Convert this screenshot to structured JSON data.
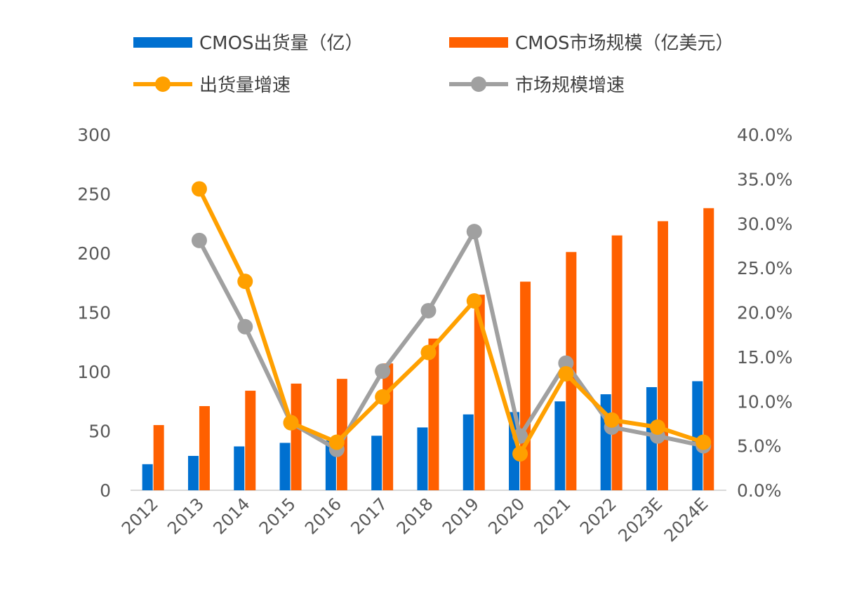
{
  "chart_data": {
    "type": "bar+line",
    "categories": [
      "2012",
      "2013",
      "2014",
      "2015",
      "2016",
      "2017",
      "2018",
      "2019",
      "2020",
      "2021",
      "2022",
      "2023E",
      "2024E"
    ],
    "series": [
      {
        "name": "CMOS出货量（亿）",
        "type": "bar",
        "axis": "left",
        "color": "#0070D0",
        "values": [
          22,
          29,
          37,
          40,
          42,
          46,
          53,
          64,
          66,
          75,
          81,
          87,
          92
        ]
      },
      {
        "name": "CMOS市场规模（亿美元）",
        "type": "bar",
        "axis": "left",
        "color": "#FF6000",
        "values": [
          55,
          71,
          84,
          90,
          94,
          107,
          128,
          165,
          176,
          201,
          215,
          227,
          238
        ]
      },
      {
        "name": "出货量增速",
        "type": "line",
        "axis": "right",
        "color": "#FFA000",
        "values": [
          null,
          33.9,
          23.5,
          7.6,
          5.4,
          10.5,
          15.5,
          21.3,
          4.1,
          13.1,
          7.9,
          7.1,
          5.4
        ]
      },
      {
        "name": "市场规模增速",
        "type": "line",
        "axis": "right",
        "color": "#A0A0A0",
        "values": [
          null,
          28.1,
          18.4,
          7.6,
          4.6,
          13.4,
          20.2,
          29.1,
          6.1,
          14.3,
          7.1,
          6.1,
          5.0
        ]
      }
    ],
    "ylim": [
      0,
      300
    ],
    "yticks": [
      "0",
      "50",
      "100",
      "150",
      "200",
      "250",
      "300"
    ],
    "y2lim": [
      0,
      40
    ],
    "y2ticks": [
      "0.0%",
      "5.0%",
      "10.0%",
      "15.0%",
      "20.0%",
      "25.0%",
      "30.0%",
      "35.0%",
      "40.0%"
    ],
    "legend": "top",
    "grid": false
  }
}
